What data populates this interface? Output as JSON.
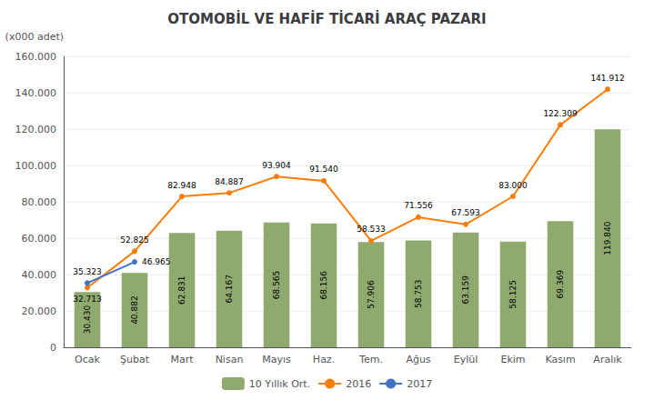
{
  "chart_data": {
    "type": "bar",
    "title": "OTOMOBİL VE HAFİF TİCARİ ARAÇ PAZARI",
    "ylabel": "(x000 adet)",
    "categories": [
      "Ocak",
      "Şubat",
      "Mart",
      "Nisan",
      "Mayıs",
      "Haz.",
      "Tem.",
      "Ağus",
      "Eylül",
      "Ekim",
      "Kasım",
      "Aralık"
    ],
    "series": [
      {
        "name": "10 Yıllık Ort.",
        "type": "bar",
        "color": "#8faa6e",
        "values": [
          30430,
          40882,
          62831,
          64167,
          68565,
          68156,
          57906,
          58753,
          63159,
          58125,
          69369,
          119840
        ],
        "value_labels": [
          "30.430",
          "40.882",
          "62.831",
          "64.167",
          "68.565",
          "68.156",
          "57.906",
          "58.753",
          "63.159",
          "58.125",
          "69.369",
          "119.840"
        ]
      },
      {
        "name": "2016",
        "type": "line",
        "color": "#f97d0a",
        "marker": "circle",
        "values": [
          32713,
          52825,
          82948,
          84887,
          93904,
          91540,
          58533,
          71556,
          67593,
          83000,
          122309,
          141912
        ],
        "value_labels": [
          "32.713",
          "52.825",
          "82.948",
          "84.887",
          "93.904",
          "91.540",
          "58.533",
          "71.556",
          "67.593",
          "83.000",
          "122.309",
          "141.912"
        ]
      },
      {
        "name": "2017",
        "type": "line",
        "color": "#4472c4",
        "marker": "circle",
        "values": [
          35323,
          46965,
          null,
          null,
          null,
          null,
          null,
          null,
          null,
          null,
          null,
          null
        ],
        "value_labels": [
          "35.323",
          "46.965",
          null,
          null,
          null,
          null,
          null,
          null,
          null,
          null,
          null,
          null
        ]
      }
    ],
    "ylim": [
      0,
      160000
    ],
    "yticks": [
      0,
      {
        "value": 20000,
        "label": "20.000"
      },
      {
        "value": 40000,
        "label": "40.000"
      },
      {
        "value": 60000,
        "label": "60.000"
      },
      {
        "value": 80000,
        "label": "80.000"
      },
      {
        "value": 100000,
        "label": "100.000"
      },
      {
        "value": 120000,
        "label": "120.000"
      },
      {
        "value": 140000,
        "label": "140.000"
      },
      {
        "value": 160000,
        "label": "160.000"
      }
    ],
    "grid": true,
    "legend": "bottom",
    "data_labels": true
  }
}
